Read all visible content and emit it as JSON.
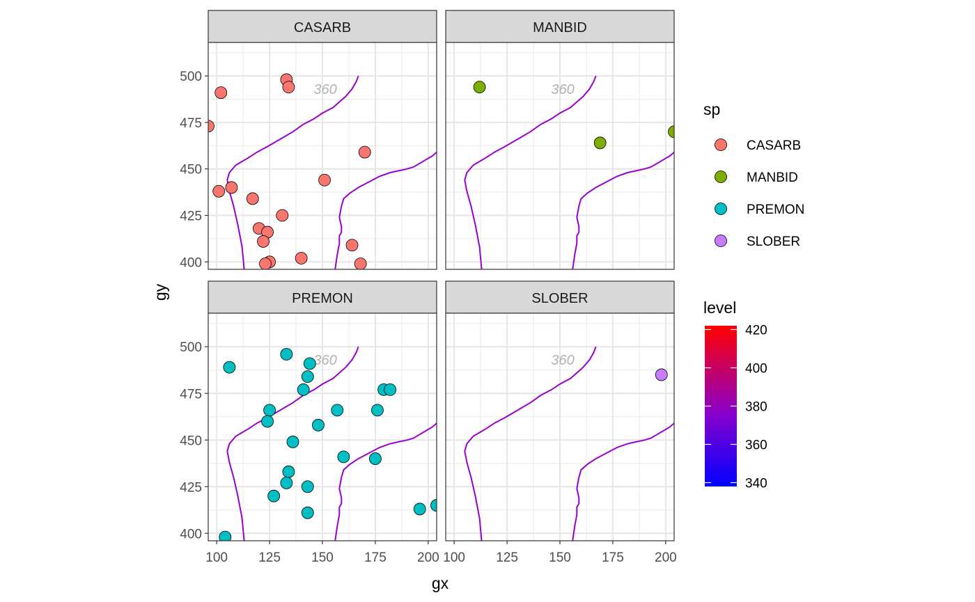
{
  "chart_data": {
    "type": "scatter",
    "xlabel": "gx",
    "ylabel": "gy",
    "xlim": [
      96,
      204
    ],
    "ylim": [
      396,
      518
    ],
    "x_ticks": [
      100,
      125,
      150,
      175,
      200
    ],
    "y_ticks": [
      400,
      425,
      450,
      475,
      500
    ],
    "facets": [
      {
        "name": "CASARB",
        "points": [
          [
            96,
            473
          ],
          [
            102,
            491
          ],
          [
            133,
            498
          ],
          [
            134,
            494
          ],
          [
            170,
            459
          ],
          [
            151,
            444
          ],
          [
            101,
            438
          ],
          [
            107,
            440
          ],
          [
            117,
            434
          ],
          [
            131,
            425
          ],
          [
            120,
            418
          ],
          [
            124,
            416
          ],
          [
            122,
            411
          ],
          [
            164,
            409
          ],
          [
            140,
            402
          ],
          [
            125,
            400
          ],
          [
            123,
            399
          ],
          [
            168,
            399
          ]
        ]
      },
      {
        "name": "MANBID",
        "points": [
          [
            112,
            494
          ],
          [
            169,
            464
          ],
          [
            204,
            470
          ]
        ]
      },
      {
        "name": "PREMON",
        "points": [
          [
            106,
            489
          ],
          [
            133,
            496
          ],
          [
            144,
            491
          ],
          [
            143,
            484
          ],
          [
            141,
            477
          ],
          [
            179,
            477
          ],
          [
            182,
            477
          ],
          [
            125,
            466
          ],
          [
            157,
            466
          ],
          [
            176,
            466
          ],
          [
            124,
            460
          ],
          [
            148,
            458
          ],
          [
            136,
            449
          ],
          [
            160,
            441
          ],
          [
            175,
            440
          ],
          [
            134,
            433
          ],
          [
            133,
            427
          ],
          [
            143,
            425
          ],
          [
            127,
            420
          ],
          [
            143,
            411
          ],
          [
            196,
            413
          ],
          [
            204,
            415
          ],
          [
            104,
            398
          ]
        ]
      },
      {
        "name": "SLOBER",
        "points": [
          [
            198,
            485
          ]
        ]
      }
    ],
    "contour": {
      "label": "360",
      "lines": [
        [
          [
            113,
            396
          ],
          [
            112,
            408
          ],
          [
            110,
            420
          ],
          [
            108,
            430
          ],
          [
            106,
            438
          ],
          [
            105,
            444
          ],
          [
            106,
            448
          ],
          [
            109,
            452
          ],
          [
            112,
            454
          ],
          [
            115,
            456
          ],
          [
            119,
            459
          ],
          [
            124,
            462
          ],
          [
            130,
            466
          ],
          [
            136,
            470
          ],
          [
            141,
            474
          ],
          [
            146,
            477
          ],
          [
            150,
            480
          ],
          [
            155,
            483
          ],
          [
            158,
            486
          ],
          [
            161,
            489
          ],
          [
            164,
            493
          ],
          [
            166,
            497
          ],
          [
            167,
            500
          ]
        ],
        [
          [
            156,
            396
          ],
          [
            157,
            404
          ],
          [
            158,
            410
          ],
          [
            158,
            414
          ],
          [
            159,
            416
          ],
          [
            159,
            419
          ],
          [
            158,
            424
          ],
          [
            159,
            430
          ],
          [
            160,
            434
          ],
          [
            163,
            437
          ],
          [
            167,
            440
          ],
          [
            172,
            443
          ],
          [
            177,
            446
          ],
          [
            182,
            448
          ],
          [
            186,
            449
          ],
          [
            190,
            450
          ],
          [
            193,
            451
          ],
          [
            196,
            453
          ],
          [
            199,
            455
          ],
          [
            202,
            457
          ],
          [
            204,
            459
          ]
        ]
      ]
    },
    "legend": {
      "sp": {
        "title": "sp",
        "items": [
          {
            "label": "CASARB",
            "color": "#F8766D"
          },
          {
            "label": "MANBID",
            "color": "#7CAE00"
          },
          {
            "label": "PREMON",
            "color": "#00BFC4"
          },
          {
            "label": "SLOBER",
            "color": "#C77CFF"
          }
        ]
      },
      "level": {
        "title": "level",
        "ticks": [
          340,
          360,
          380,
          400,
          420
        ],
        "range": [
          338,
          422
        ],
        "low_color": "#0000FF",
        "high_color": "#FF0000"
      }
    },
    "contour_color": "#9900CC",
    "grid": true,
    "legend_position": "right"
  }
}
